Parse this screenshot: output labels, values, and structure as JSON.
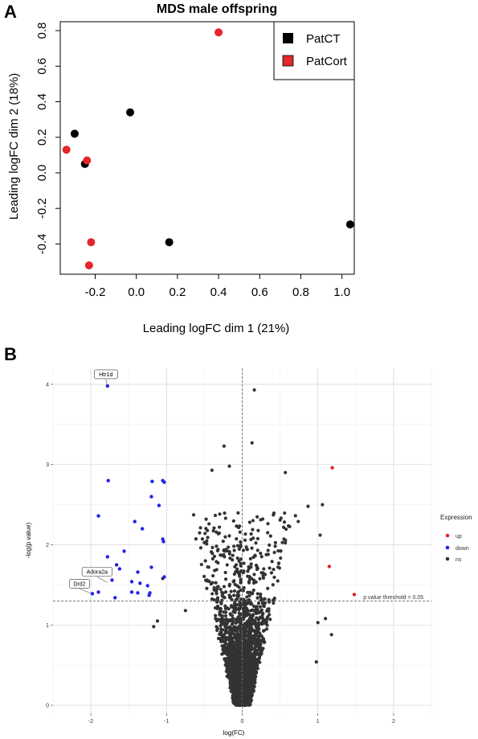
{
  "panel_a_letter": "A",
  "panel_b_letter": "B",
  "chart_data": [
    {
      "type": "scatter",
      "title": "MDS male offspring",
      "xlabel": "Leading logFC dim 1 (21%)",
      "ylabel": "Leading logFC dim 2 (18%)",
      "xlim": [
        -0.37,
        1.06
      ],
      "ylim": [
        -0.57,
        0.85
      ],
      "xticks": [
        "-0.2",
        "0.0",
        "0.2",
        "0.4",
        "0.6",
        "0.8",
        "1.0"
      ],
      "yticks": [
        "-0.4",
        "-0.2",
        "0.0",
        "0.2",
        "0.4",
        "0.6",
        "0.8"
      ],
      "legend_position": "top-right",
      "series": [
        {
          "name": "PatCT",
          "color": "#000000",
          "points": [
            [
              -0.3,
              0.22
            ],
            [
              -0.03,
              0.34
            ],
            [
              -0.25,
              0.05
            ],
            [
              0.16,
              -0.39
            ],
            [
              1.04,
              -0.29
            ]
          ]
        },
        {
          "name": "PatCort",
          "color": "#e3262c",
          "points": [
            [
              0.4,
              0.79
            ],
            [
              -0.34,
              0.13
            ],
            [
              -0.24,
              0.07
            ],
            [
              -0.22,
              -0.39
            ],
            [
              -0.23,
              -0.52
            ]
          ]
        }
      ]
    },
    {
      "type": "scatter",
      "title": "",
      "xlabel": "log(FC)",
      "ylabel": "-log(p value)",
      "xlim": [
        -2.5,
        2.5
      ],
      "ylim": [
        -0.1,
        4.2
      ],
      "xticks": [
        "-2",
        "-1",
        "0",
        "1",
        "2"
      ],
      "yticks": [
        "0",
        "1",
        "2",
        "3",
        "4"
      ],
      "grid": true,
      "threshold": {
        "y": 1.3,
        "label": "p value threshold = 0.05"
      },
      "legend": {
        "title": "Expression",
        "position": "right",
        "items": [
          {
            "name": "up",
            "color": "#e3262c"
          },
          {
            "name": "down",
            "color": "#2323e8"
          },
          {
            "name": "ns",
            "color": "#333333"
          }
        ]
      },
      "labels": [
        {
          "text": "Htr1d",
          "x": -1.78,
          "y": 3.98
        },
        {
          "text": "Adora2a",
          "x": -1.78,
          "y": 1.53
        },
        {
          "text": "Drd2",
          "x": -1.98,
          "y": 1.39
        }
      ],
      "series_up": [
        [
          1.19,
          2.96
        ],
        [
          1.15,
          1.73
        ],
        [
          1.48,
          1.38
        ]
      ],
      "series_down": [
        [
          -1.78,
          3.98
        ],
        [
          -1.77,
          2.8
        ],
        [
          -1.9,
          2.36
        ],
        [
          -1.19,
          2.79
        ],
        [
          -1.05,
          2.8
        ],
        [
          -1.03,
          2.78
        ],
        [
          -1.2,
          2.6
        ],
        [
          -1.1,
          2.49
        ],
        [
          -1.42,
          2.29
        ],
        [
          -1.32,
          2.2
        ],
        [
          -1.56,
          1.92
        ],
        [
          -1.05,
          2.07
        ],
        [
          -1.04,
          2.04
        ],
        [
          -1.78,
          1.85
        ],
        [
          -1.66,
          1.75
        ],
        [
          -1.62,
          1.7
        ],
        [
          -1.38,
          1.66
        ],
        [
          -1.2,
          1.72
        ],
        [
          -1.77,
          1.65
        ],
        [
          -1.72,
          1.56
        ],
        [
          -1.46,
          1.54
        ],
        [
          -1.35,
          1.52
        ],
        [
          -1.25,
          1.49
        ],
        [
          -1.03,
          1.6
        ],
        [
          -1.9,
          1.41
        ],
        [
          -1.98,
          1.39
        ],
        [
          -1.46,
          1.41
        ],
        [
          -1.38,
          1.4
        ],
        [
          -1.68,
          1.34
        ],
        [
          -1.22,
          1.4
        ],
        [
          -1.23,
          1.37
        ]
      ],
      "series_ns_highlight": [
        [
          0.16,
          3.93
        ],
        [
          0.13,
          3.27
        ],
        [
          -0.24,
          3.23
        ],
        [
          -0.17,
          2.98
        ],
        [
          -0.4,
          2.93
        ],
        [
          0.57,
          2.9
        ],
        [
          1.03,
          2.12
        ],
        [
          1.06,
          2.5
        ],
        [
          0.87,
          2.48
        ],
        [
          0.74,
          2.29
        ],
        [
          1.1,
          1.08
        ],
        [
          1.0,
          1.03
        ],
        [
          0.98,
          0.54
        ],
        [
          1.18,
          0.88
        ],
        [
          -1.05,
          1.58
        ],
        [
          -1.12,
          1.05
        ],
        [
          -1.17,
          0.98
        ],
        [
          -0.75,
          1.18
        ]
      ]
    }
  ]
}
